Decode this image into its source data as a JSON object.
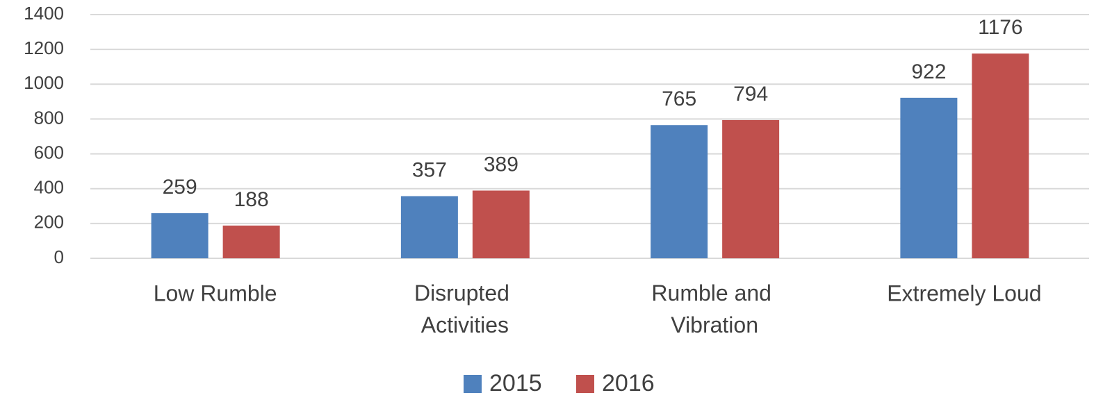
{
  "chart_data": {
    "type": "bar",
    "categories": [
      "Low Rumble",
      "Disrupted Activities",
      "Rumble and Vibration",
      "Extremely Loud"
    ],
    "series": [
      {
        "name": "2015",
        "color": "#4f81bd",
        "values": [
          259,
          357,
          765,
          922
        ]
      },
      {
        "name": "2016",
        "color": "#c0504d",
        "values": [
          188,
          389,
          794,
          1176
        ]
      }
    ],
    "ylim": [
      0,
      1400
    ],
    "yticks": [
      0,
      200,
      400,
      600,
      800,
      1000,
      1200,
      1400
    ],
    "grid": true,
    "legend": "bottom"
  }
}
